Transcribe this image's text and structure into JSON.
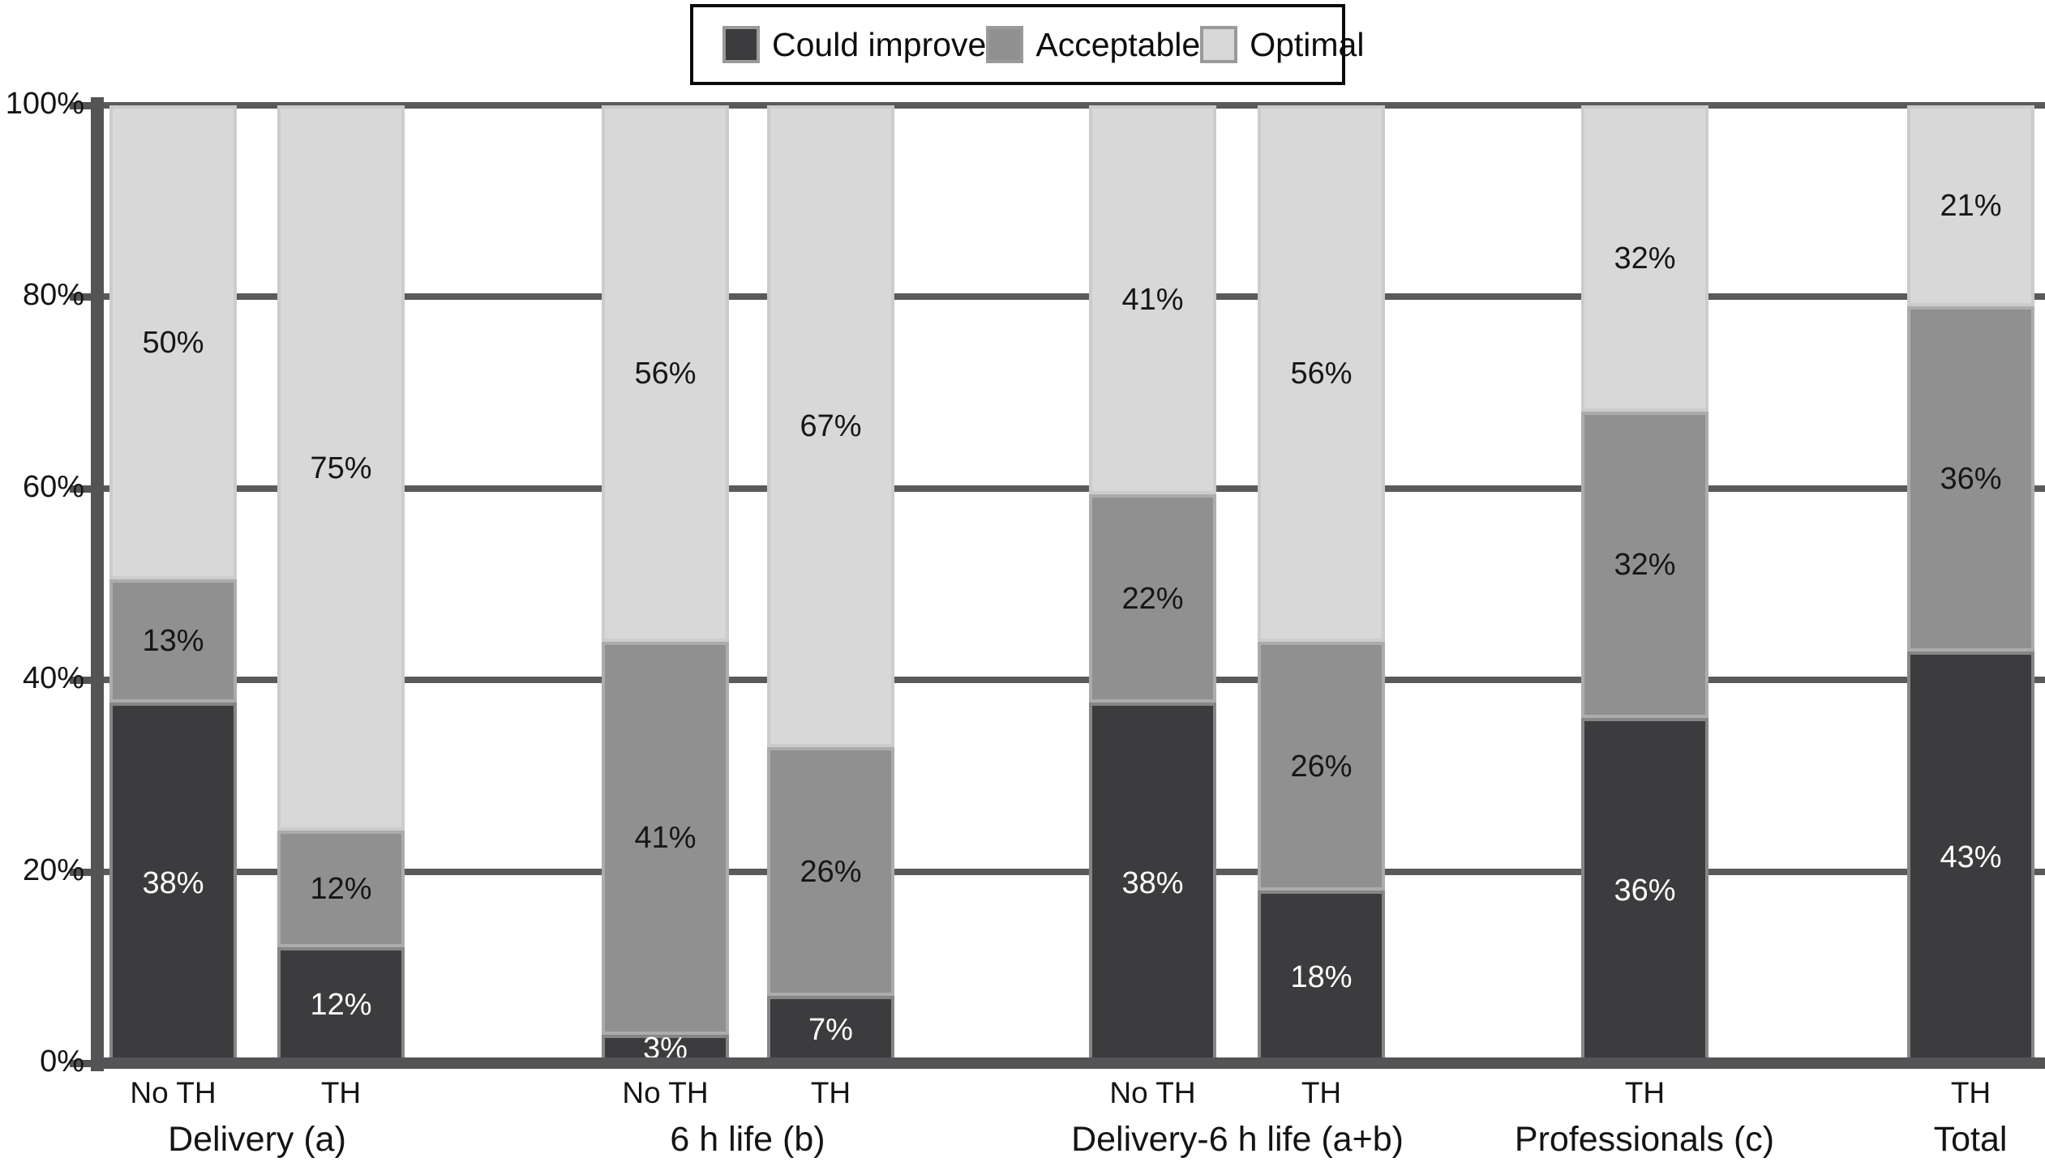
{
  "chart_data": {
    "type": "bar",
    "stacked": true,
    "orientation": "vertical",
    "unit": "%",
    "ylim": [
      0,
      100
    ],
    "y_ticks": [
      "0%",
      "20%",
      "40%",
      "60%",
      "80%",
      "100%"
    ],
    "grid": true,
    "legend": {
      "position": "top-center",
      "entries": [
        {
          "key": "could_improve",
          "label": "Could improve",
          "color": "#3c3c3e"
        },
        {
          "key": "acceptable",
          "label": "Acceptable",
          "color": "#909090"
        },
        {
          "key": "optimal",
          "label": "Optimal",
          "color": "#d8d8d8"
        }
      ]
    },
    "series_order_bottom_to_top": [
      "could_improve",
      "acceptable",
      "optimal"
    ],
    "groups": [
      {
        "label": "Delivery (a)",
        "bars": [
          {
            "tick": "No TH",
            "values": {
              "could_improve": 38,
              "acceptable": 13,
              "optimal": 50
            }
          },
          {
            "tick": "TH",
            "values": {
              "could_improve": 12,
              "acceptable": 12,
              "optimal": 75
            }
          }
        ]
      },
      {
        "label": "6 h life (b)",
        "bars": [
          {
            "tick": "No TH",
            "values": {
              "could_improve": 3,
              "acceptable": 41,
              "optimal": 56
            }
          },
          {
            "tick": "TH",
            "values": {
              "could_improve": 7,
              "acceptable": 26,
              "optimal": 67
            }
          }
        ]
      },
      {
        "label": "Delivery-6 h life (a+b)",
        "bars": [
          {
            "tick": "No TH",
            "values": {
              "could_improve": 38,
              "acceptable": 22,
              "optimal": 41
            }
          },
          {
            "tick": "TH",
            "values": {
              "could_improve": 18,
              "acceptable": 26,
              "optimal": 56
            }
          }
        ]
      },
      {
        "label": "Professionals (c)",
        "bars": [
          {
            "tick": "TH",
            "values": {
              "could_improve": 36,
              "acceptable": 32,
              "optimal": 32
            }
          }
        ]
      },
      {
        "label": "Total",
        "bars": [
          {
            "tick": "TH",
            "values": {
              "could_improve": 43,
              "acceptable": 36,
              "optimal": 21
            }
          }
        ]
      }
    ],
    "colors": {
      "could_improve": "#3c3c3e",
      "acceptable": "#909090",
      "optimal": "#d8d8d8",
      "gridline": "#5a5a5a",
      "axis": "#545456",
      "label_on_dark": "#ffffff",
      "label_on_light": "#161616"
    }
  }
}
